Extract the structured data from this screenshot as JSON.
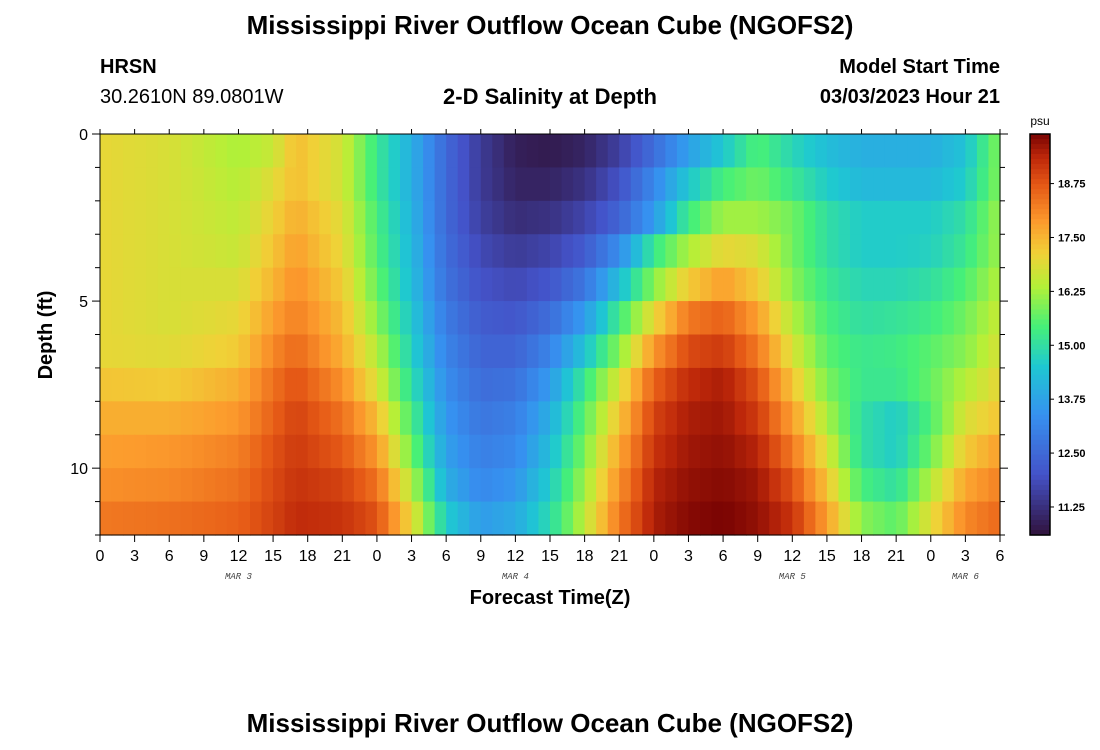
{
  "header": {
    "title": "Mississippi River Outflow Ocean Cube (NGOFS2)",
    "station": "HRSN",
    "coords": "30.2610N  89.0801W",
    "subtitle": "2-D Salinity at Depth",
    "model_start_label": "Model Start Time",
    "model_start_value": "03/03/2023 Hour 21"
  },
  "footer": {
    "title": "Mississippi River Outflow Ocean Cube (NGOFS2)"
  },
  "colors": {
    "frame": "#000000",
    "background": "#ffffff"
  },
  "chart_data": {
    "type": "heatmap",
    "xlabel": "Forecast Time(Z)",
    "ylabel": "Depth (ft)",
    "x_tick_labels": [
      "0",
      "3",
      "6",
      "9",
      "12",
      "15",
      "18",
      "21",
      "0",
      "3",
      "6",
      "9",
      "12",
      "15",
      "18",
      "21",
      "0",
      "3",
      "6",
      "9",
      "12",
      "15",
      "18",
      "21",
      "0",
      "3",
      "6"
    ],
    "x_range_hours": [
      0,
      78
    ],
    "date_labels": [
      {
        "label": "MAR 3",
        "hour": 12
      },
      {
        "label": "MAR 4",
        "hour": 36
      },
      {
        "label": "MAR 5",
        "hour": 60
      },
      {
        "label": "MAR 6",
        "hour": 75
      }
    ],
    "y_ticks": [
      0,
      5,
      10
    ],
    "ylim": [
      0,
      12
    ],
    "y_reversed": true,
    "colorbar": {
      "unit": "psu",
      "ticks": [
        "11.25",
        "12.50",
        "13.75",
        "15.00",
        "16.25",
        "17.50",
        "18.75"
      ],
      "vmin": 10.6,
      "vmax": 19.9
    },
    "depth_layers_ft": [
      0.5,
      1.5,
      2.5,
      3.5,
      4.5,
      5.5,
      6.5,
      7.5,
      8.5,
      9.5,
      10.5,
      11.5
    ],
    "time_keys_hours": [
      0,
      6,
      12,
      15,
      17,
      21,
      24,
      27,
      30,
      33,
      36,
      39,
      42,
      45,
      48,
      51,
      54,
      57,
      60,
      63,
      66,
      69,
      72,
      75,
      78
    ],
    "salinity_psu": [
      [
        17.0,
        16.8,
        16.3,
        16.6,
        17.4,
        16.7,
        15.2,
        14.0,
        12.5,
        11.5,
        10.9,
        10.8,
        11.0,
        11.6,
        12.6,
        13.7,
        14.5,
        15.5,
        14.8,
        14.3,
        14.0,
        14.0,
        14.0,
        14.4,
        16.0
      ],
      [
        17.0,
        16.8,
        16.4,
        16.9,
        17.4,
        16.7,
        15.2,
        14.0,
        12.5,
        11.5,
        11.0,
        11.0,
        11.3,
        12.0,
        13.2,
        14.5,
        15.4,
        15.8,
        15.2,
        14.6,
        14.2,
        14.2,
        14.2,
        14.6,
        16.0
      ],
      [
        17.0,
        16.8,
        16.5,
        17.1,
        17.6,
        16.9,
        15.4,
        14.1,
        12.5,
        11.6,
        11.2,
        11.3,
        11.7,
        12.4,
        13.6,
        15.3,
        16.2,
        16.2,
        15.8,
        15.0,
        14.6,
        14.6,
        14.6,
        15.0,
        16.2
      ],
      [
        17.0,
        16.8,
        16.6,
        17.3,
        17.8,
        17.0,
        15.5,
        14.2,
        12.6,
        11.8,
        11.5,
        11.7,
        12.2,
        13.3,
        15.2,
        16.3,
        17.0,
        16.8,
        15.8,
        15.0,
        14.6,
        14.6,
        14.7,
        15.2,
        16.2
      ],
      [
        17.0,
        16.8,
        16.8,
        17.5,
        18.0,
        17.2,
        15.7,
        14.3,
        12.7,
        12.0,
        11.8,
        12.1,
        12.8,
        14.3,
        16.0,
        17.2,
        17.8,
        17.2,
        16.0,
        15.2,
        14.8,
        14.8,
        15.0,
        15.5,
        16.4
      ],
      [
        17.0,
        16.8,
        17.0,
        17.8,
        18.2,
        17.4,
        16.0,
        14.5,
        12.9,
        12.2,
        12.1,
        12.6,
        13.6,
        15.3,
        17.0,
        18.3,
        18.6,
        17.8,
        16.4,
        15.4,
        15.0,
        15.1,
        15.3,
        15.8,
        16.6
      ],
      [
        17.0,
        16.9,
        17.2,
        18.1,
        18.5,
        17.6,
        16.4,
        14.7,
        13.1,
        12.4,
        12.4,
        13.1,
        14.4,
        16.0,
        17.9,
        18.9,
        19.1,
        18.3,
        16.8,
        15.6,
        15.2,
        15.3,
        15.6,
        16.0,
        16.8
      ],
      [
        17.3,
        17.2,
        17.6,
        18.4,
        18.8,
        18.0,
        16.8,
        15.0,
        13.3,
        12.6,
        12.7,
        13.6,
        15.2,
        16.8,
        18.6,
        19.3,
        19.5,
        18.8,
        17.3,
        15.9,
        15.2,
        15.2,
        15.7,
        16.4,
        17.0
      ],
      [
        17.6,
        17.6,
        17.9,
        18.6,
        19.0,
        18.4,
        17.4,
        15.4,
        13.5,
        12.8,
        13.0,
        14.0,
        15.6,
        17.3,
        19.0,
        19.5,
        19.6,
        19.1,
        17.8,
        16.3,
        15.0,
        14.6,
        15.5,
        16.8,
        17.3
      ],
      [
        17.8,
        17.9,
        18.2,
        18.8,
        19.1,
        18.7,
        17.9,
        15.8,
        13.7,
        13.0,
        13.2,
        14.3,
        15.9,
        17.7,
        19.2,
        19.6,
        19.7,
        19.4,
        18.3,
        16.8,
        15.0,
        14.6,
        15.8,
        17.2,
        17.8
      ],
      [
        18.0,
        18.1,
        18.4,
        18.9,
        19.2,
        19.0,
        18.4,
        16.4,
        14.0,
        13.2,
        13.5,
        14.6,
        16.2,
        18.0,
        19.4,
        19.7,
        19.8,
        19.6,
        18.8,
        17.3,
        15.4,
        15.0,
        16.4,
        17.7,
        18.2
      ],
      [
        18.3,
        18.4,
        18.6,
        19.0,
        19.3,
        19.2,
        18.8,
        17.0,
        14.6,
        13.6,
        13.9,
        14.9,
        16.5,
        18.3,
        19.5,
        19.8,
        19.9,
        19.7,
        19.2,
        17.8,
        16.0,
        15.6,
        16.9,
        18.1,
        18.5
      ]
    ]
  }
}
